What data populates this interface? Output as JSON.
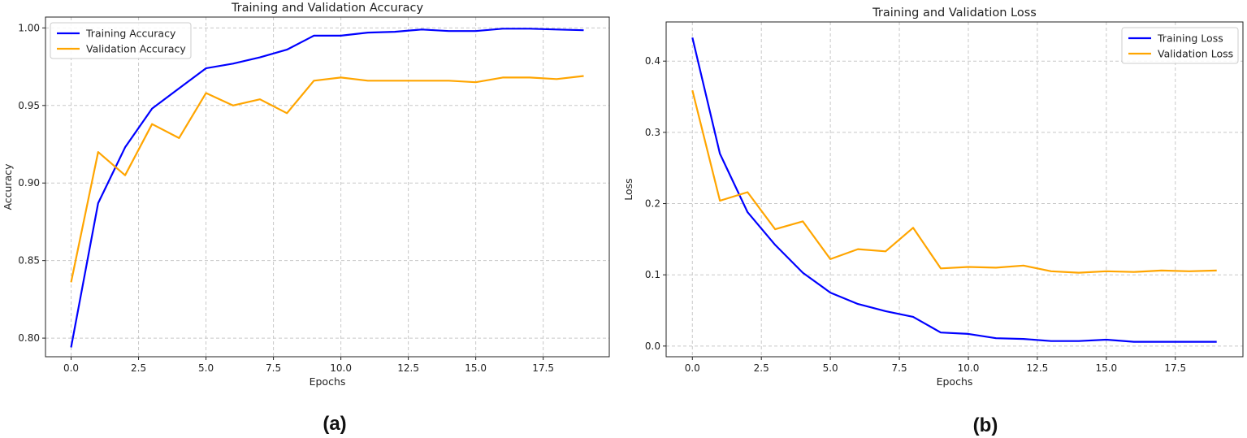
{
  "colors": {
    "training": "#0000ff",
    "validation": "#ffa500",
    "grid": "#c8c8c8",
    "frame": "#222222"
  },
  "chart_data": [
    {
      "type": "line",
      "title": "Training and Validation Accuracy",
      "xlabel": "Epochs",
      "ylabel": "Accuracy",
      "panel_label": "(a)",
      "xlim": [
        -0.95,
        19.95
      ],
      "ylim": [
        0.788,
        1.007
      ],
      "xticks": [
        0.0,
        2.5,
        5.0,
        7.5,
        10.0,
        12.5,
        15.0,
        17.5
      ],
      "xtick_labels": [
        "0.0",
        "2.5",
        "5.0",
        "7.5",
        "10.0",
        "12.5",
        "15.0",
        "17.5"
      ],
      "yticks": [
        0.8,
        0.85,
        0.9,
        0.95,
        1.0
      ],
      "ytick_labels": [
        "0.80",
        "0.85",
        "0.90",
        "0.95",
        "1.00"
      ],
      "grid": true,
      "legend_position": "upper-left",
      "x": [
        0,
        1,
        2,
        3,
        4,
        5,
        6,
        7,
        8,
        9,
        10,
        11,
        12,
        13,
        14,
        15,
        16,
        17,
        18,
        19
      ],
      "series": [
        {
          "name": "Training Accuracy",
          "color": "#0000ff",
          "values": [
            0.794,
            0.887,
            0.923,
            0.948,
            0.961,
            0.974,
            0.977,
            0.981,
            0.986,
            0.995,
            0.995,
            0.997,
            0.9975,
            0.999,
            0.998,
            0.998,
            0.9995,
            0.9995,
            0.999,
            0.9985
          ]
        },
        {
          "name": "Validation Accuracy",
          "color": "#ffa500",
          "values": [
            0.836,
            0.92,
            0.905,
            0.938,
            0.929,
            0.958,
            0.95,
            0.954,
            0.945,
            0.966,
            0.968,
            0.966,
            0.966,
            0.966,
            0.966,
            0.965,
            0.968,
            0.968,
            0.967,
            0.969
          ]
        }
      ]
    },
    {
      "type": "line",
      "title": "Training and Validation Loss",
      "xlabel": "Epochs",
      "ylabel": "Loss",
      "panel_label": "(b)",
      "xlim": [
        -0.95,
        19.95
      ],
      "ylim": [
        -0.015,
        0.455
      ],
      "xticks": [
        0.0,
        2.5,
        5.0,
        7.5,
        10.0,
        12.5,
        15.0,
        17.5
      ],
      "xtick_labels": [
        "0.0",
        "2.5",
        "5.0",
        "7.5",
        "10.0",
        "12.5",
        "15.0",
        "17.5"
      ],
      "yticks": [
        0.0,
        0.1,
        0.2,
        0.3,
        0.4
      ],
      "ytick_labels": [
        "0.0",
        "0.1",
        "0.2",
        "0.3",
        "0.4"
      ],
      "grid": true,
      "legend_position": "upper-right",
      "x": [
        0,
        1,
        2,
        3,
        4,
        5,
        6,
        7,
        8,
        9,
        10,
        11,
        12,
        13,
        14,
        15,
        16,
        17,
        18,
        19
      ],
      "series": [
        {
          "name": "Training Loss",
          "color": "#0000ff",
          "values": [
            0.433,
            0.27,
            0.188,
            0.142,
            0.103,
            0.075,
            0.059,
            0.049,
            0.041,
            0.019,
            0.017,
            0.011,
            0.01,
            0.007,
            0.007,
            0.009,
            0.006,
            0.006,
            0.006,
            0.006
          ]
        },
        {
          "name": "Validation Loss",
          "color": "#ffa500",
          "values": [
            0.359,
            0.204,
            0.216,
            0.164,
            0.175,
            0.122,
            0.136,
            0.133,
            0.166,
            0.109,
            0.111,
            0.11,
            0.113,
            0.105,
            0.103,
            0.105,
            0.104,
            0.106,
            0.105,
            0.106
          ]
        }
      ]
    }
  ]
}
